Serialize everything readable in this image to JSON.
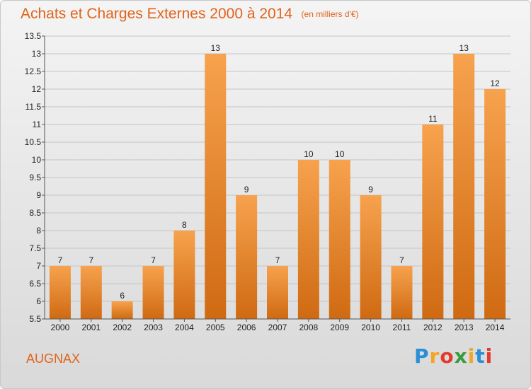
{
  "title": "Achats et Charges Externes 2000 à 2014",
  "unit_label": "(en milliers d'€)",
  "commune": "AUGNAX",
  "logo": {
    "letters": [
      "P",
      "r",
      "o",
      "x",
      "i",
      "t",
      "i"
    ],
    "colors": [
      "#2a8fd6",
      "#f2a623",
      "#e23b2b",
      "#3a9b3c",
      "#f2a623",
      "#2a8fd6",
      "#e23b2b"
    ]
  },
  "colors": {
    "bar_top": "#f7a24e",
    "bar_bottom": "#cf6a12",
    "accent": "#e0641b"
  },
  "chart_data": {
    "type": "bar",
    "title": "Achats et Charges Externes 2000 à 2014",
    "xlabel": "",
    "ylabel": "",
    "categories": [
      "2000",
      "2001",
      "2002",
      "2003",
      "2004",
      "2005",
      "2006",
      "2007",
      "2008",
      "2009",
      "2010",
      "2011",
      "2012",
      "2013",
      "2014"
    ],
    "values": [
      7,
      7,
      6,
      7,
      8,
      13,
      9,
      7,
      10,
      10,
      9,
      7,
      11,
      13,
      12
    ],
    "ylim": [
      5.5,
      13.5
    ],
    "yticks": [
      "5.5",
      "6",
      "6.5",
      "7",
      "7.5",
      "8",
      "8.5",
      "9",
      "9.5",
      "10",
      "10.5",
      "11",
      "11.5",
      "12",
      "12.5",
      "13",
      "13.5"
    ],
    "grid": true,
    "legend": "none"
  }
}
